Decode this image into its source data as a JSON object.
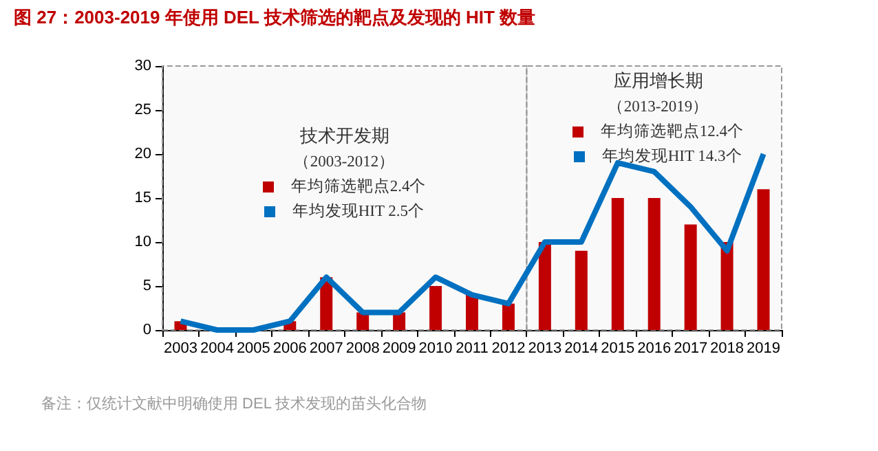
{
  "chart_data": {
    "type": "bar",
    "title": "图 27：2003-2019 年使用 DEL 技术筛选的靶点及发现的 HIT 数量",
    "categories": [
      "2003",
      "2004",
      "2005",
      "2006",
      "2007",
      "2008",
      "2009",
      "2010",
      "2011",
      "2012",
      "2013",
      "2014",
      "2015",
      "2016",
      "2017",
      "2018",
      "2019"
    ],
    "series": [
      {
        "color": "#c00000",
        "values": [
          1,
          0,
          0,
          1,
          6,
          2,
          2,
          5,
          4,
          3,
          10,
          9,
          15,
          15,
          12,
          10,
          16
        ]
      },
      {
        "type": "line",
        "color": "#0070c0",
        "values": [
          1,
          0,
          0,
          1,
          6,
          2,
          2,
          6,
          4,
          3,
          10,
          10,
          19,
          18,
          14,
          9,
          20
        ]
      }
    ],
    "ylim": [
      0,
      30
    ],
    "yticks": [
      0,
      5,
      10,
      15,
      20,
      25,
      30
    ],
    "bands": [
      {
        "axis": "x",
        "from": "2003",
        "to": "2012",
        "label": "技术开发期"
      },
      {
        "axis": "x",
        "from": "2013",
        "to": "2019",
        "label": "应用增长期"
      }
    ],
    "annotations": [
      "（2003-2012）",
      "年均筛选靶点2.4个",
      "年均发现HIT 2.5个",
      "（2013-2019）",
      "年均筛选靶点12.4个",
      "年均发现HIT 14.3个",
      "备注：仅统计文献中明确使用 DEL 技术发现的苗头化合物"
    ],
    "grid": false,
    "marker": "none",
    "line_style": "solid"
  }
}
